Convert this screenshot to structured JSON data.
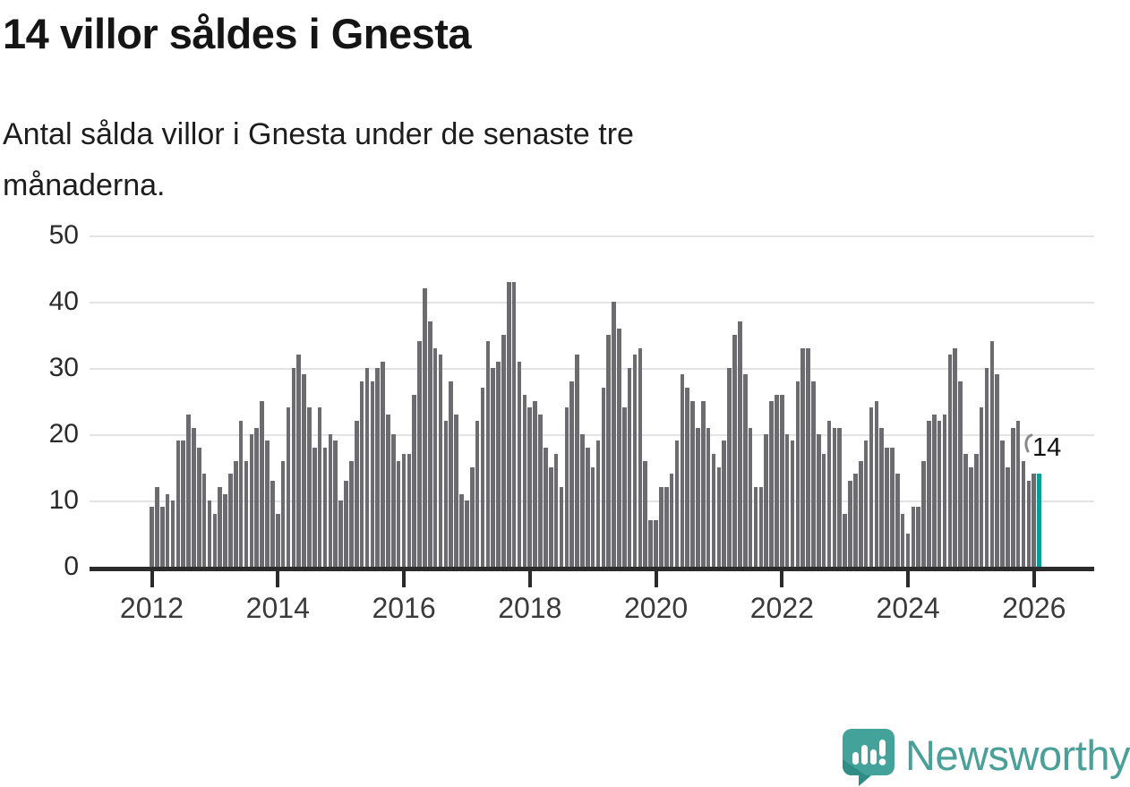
{
  "header": {
    "title": "14 villor såldes i Gnesta",
    "subtitle_lines": [
      "Antal sålda villor i Gnesta under de senaste tre",
      "månaderna."
    ]
  },
  "annotation": {
    "label": "14"
  },
  "footer": {
    "brand": "Newsworthy"
  },
  "colors": {
    "bar": "#6b6b70",
    "highlight": "#069e97",
    "axis": "#2b2b2b",
    "gridline": "#e3e3e3",
    "brand_teal": "#4aa099",
    "logo_bubble": "#43a39a",
    "logo_bubble_dark": "#2f8d86"
  },
  "chart_data": {
    "type": "bar",
    "title": "Antal sålda villor i Gnesta under de senaste tre månaderna",
    "xlabel": "",
    "ylabel": "",
    "x_start": "2012-01",
    "x_end": "2026-02",
    "x_tick_labels": [
      "2012",
      "2014",
      "2016",
      "2018",
      "2020",
      "2022",
      "2024",
      "2026"
    ],
    "y_ticks": [
      0,
      10,
      20,
      30,
      40,
      50
    ],
    "ylim": [
      0,
      50
    ],
    "grid": true,
    "legend": "none",
    "highlight_last": true,
    "highlight_value": 14,
    "values_by_year": {
      "2012": [
        9,
        12,
        9,
        11,
        10,
        19,
        19,
        23,
        21,
        18,
        14,
        10
      ],
      "2013": [
        8,
        12,
        11,
        14,
        16,
        22,
        16,
        20,
        21,
        25,
        19,
        13
      ],
      "2014": [
        8,
        16,
        24,
        30,
        32,
        29,
        24,
        18,
        24,
        18,
        20,
        19
      ],
      "2015": [
        10,
        13,
        16,
        22,
        28,
        30,
        28,
        30,
        31,
        23,
        20,
        16
      ],
      "2016": [
        17,
        17,
        26,
        34,
        42,
        37,
        33,
        32,
        22,
        28,
        23,
        11
      ],
      "2017": [
        10,
        15,
        22,
        27,
        34,
        30,
        31,
        35,
        43,
        43,
        31,
        26
      ],
      "2018": [
        24,
        25,
        23,
        18,
        15,
        17,
        12,
        24,
        28,
        32,
        20,
        18
      ],
      "2019": [
        15,
        19,
        27,
        35,
        40,
        36,
        24,
        30,
        32,
        33,
        16,
        7
      ],
      "2020": [
        7,
        12,
        12,
        14,
        19,
        29,
        27,
        25,
        21,
        25,
        21,
        17
      ],
      "2021": [
        15,
        19,
        30,
        35,
        37,
        29,
        21,
        12,
        12,
        20,
        25,
        26
      ],
      "2022": [
        26,
        20,
        19,
        28,
        33,
        33,
        28,
        20,
        17,
        22,
        21,
        21
      ],
      "2023": [
        8,
        13,
        14,
        16,
        19,
        24,
        25,
        21,
        18,
        18,
        14,
        8
      ],
      "2024": [
        5,
        9,
        9,
        16,
        22,
        23,
        22,
        23,
        32,
        33,
        28,
        17
      ],
      "2025": [
        15,
        17,
        24,
        30,
        34,
        29,
        19,
        15,
        21,
        22,
        16,
        13
      ],
      "2026": [
        14,
        14
      ]
    }
  }
}
